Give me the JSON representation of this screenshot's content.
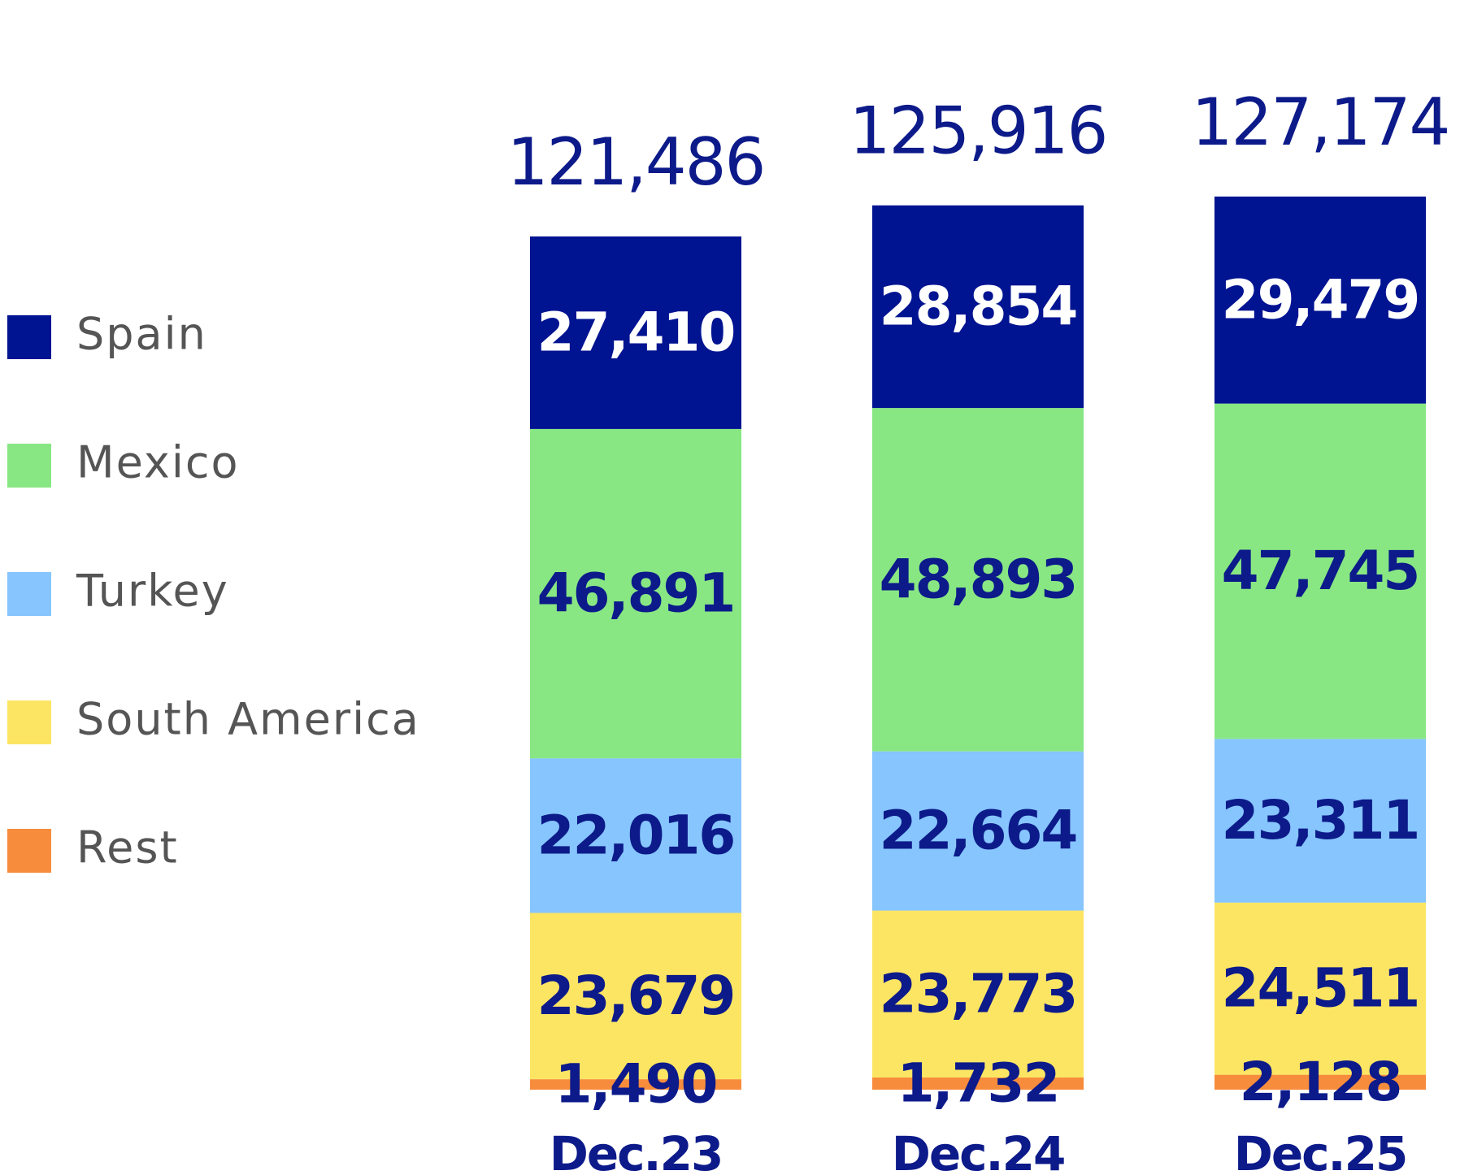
{
  "chart_data": {
    "type": "stacked_bar",
    "categories": [
      "Dec.23",
      "Dec.24",
      "Dec.25"
    ],
    "series": [
      {
        "name": "Spain",
        "color": "#001391",
        "values": [
          27410,
          28854,
          29479
        ],
        "value_labels": [
          "27,410",
          "28,854",
          "29,479"
        ]
      },
      {
        "name": "Mexico",
        "color": "#88e783",
        "values": [
          46891,
          48893,
          47745
        ],
        "value_labels": [
          "46,891",
          "48,893",
          "47,745"
        ]
      },
      {
        "name": "Turkey",
        "color": "#86c5fd",
        "values": [
          22016,
          22664,
          23311
        ],
        "value_labels": [
          "22,016",
          "22,664",
          "23,311"
        ]
      },
      {
        "name": "South America",
        "color": "#fde564",
        "values": [
          23679,
          23773,
          24511
        ],
        "value_labels": [
          "23,679",
          "23,773",
          "24,511"
        ]
      },
      {
        "name": "Rest",
        "color": "#f78c3c",
        "values": [
          1490,
          1732,
          2128
        ],
        "value_labels": [
          "1,490",
          "1,732",
          "2,128"
        ]
      }
    ],
    "totals": [
      121486,
      125916,
      127174
    ],
    "total_labels": [
      "121,486",
      "125,916",
      "127,174"
    ],
    "ylim": [
      0,
      140000
    ],
    "legend": "left"
  }
}
